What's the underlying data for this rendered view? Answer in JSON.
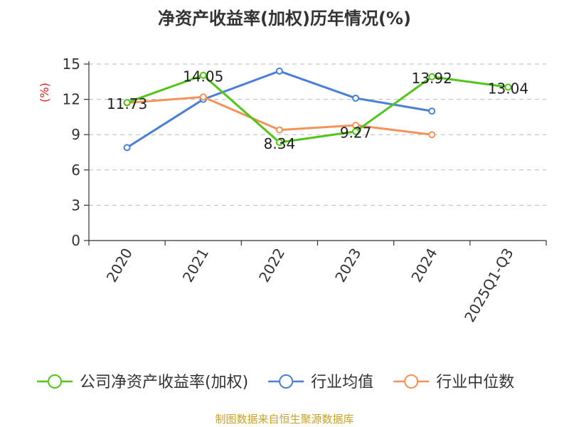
{
  "chart_data": {
    "type": "line",
    "title": "净资产收益率(加权)历年情况(%)",
    "ylabel": "(%)",
    "categories": [
      "2020",
      "2021",
      "2022",
      "2023",
      "2024",
      "2025Q1-Q3"
    ],
    "ylim": [
      0,
      15
    ],
    "yticks": [
      "0",
      "3",
      "6",
      "9",
      "12",
      "15"
    ],
    "grid": true,
    "legend_position": "bottom",
    "series": [
      {
        "name": "公司净资产收益率(加权)",
        "color": "#52c41a",
        "values": [
          11.73,
          14.05,
          8.34,
          9.27,
          13.92,
          13.04
        ],
        "labels": [
          "11.73",
          "14.05",
          "8.34",
          "9.27",
          "13.92",
          "13.04"
        ]
      },
      {
        "name": "行业均值",
        "color": "#4a7fd6",
        "values": [
          7.9,
          12.0,
          14.4,
          12.1,
          11.0,
          null
        ]
      },
      {
        "name": "行业中位数",
        "color": "#f5925a",
        "values": [
          11.7,
          12.2,
          9.4,
          9.8,
          9.0,
          null
        ]
      }
    ],
    "source": "制图数据来自恒生聚源数据库"
  }
}
